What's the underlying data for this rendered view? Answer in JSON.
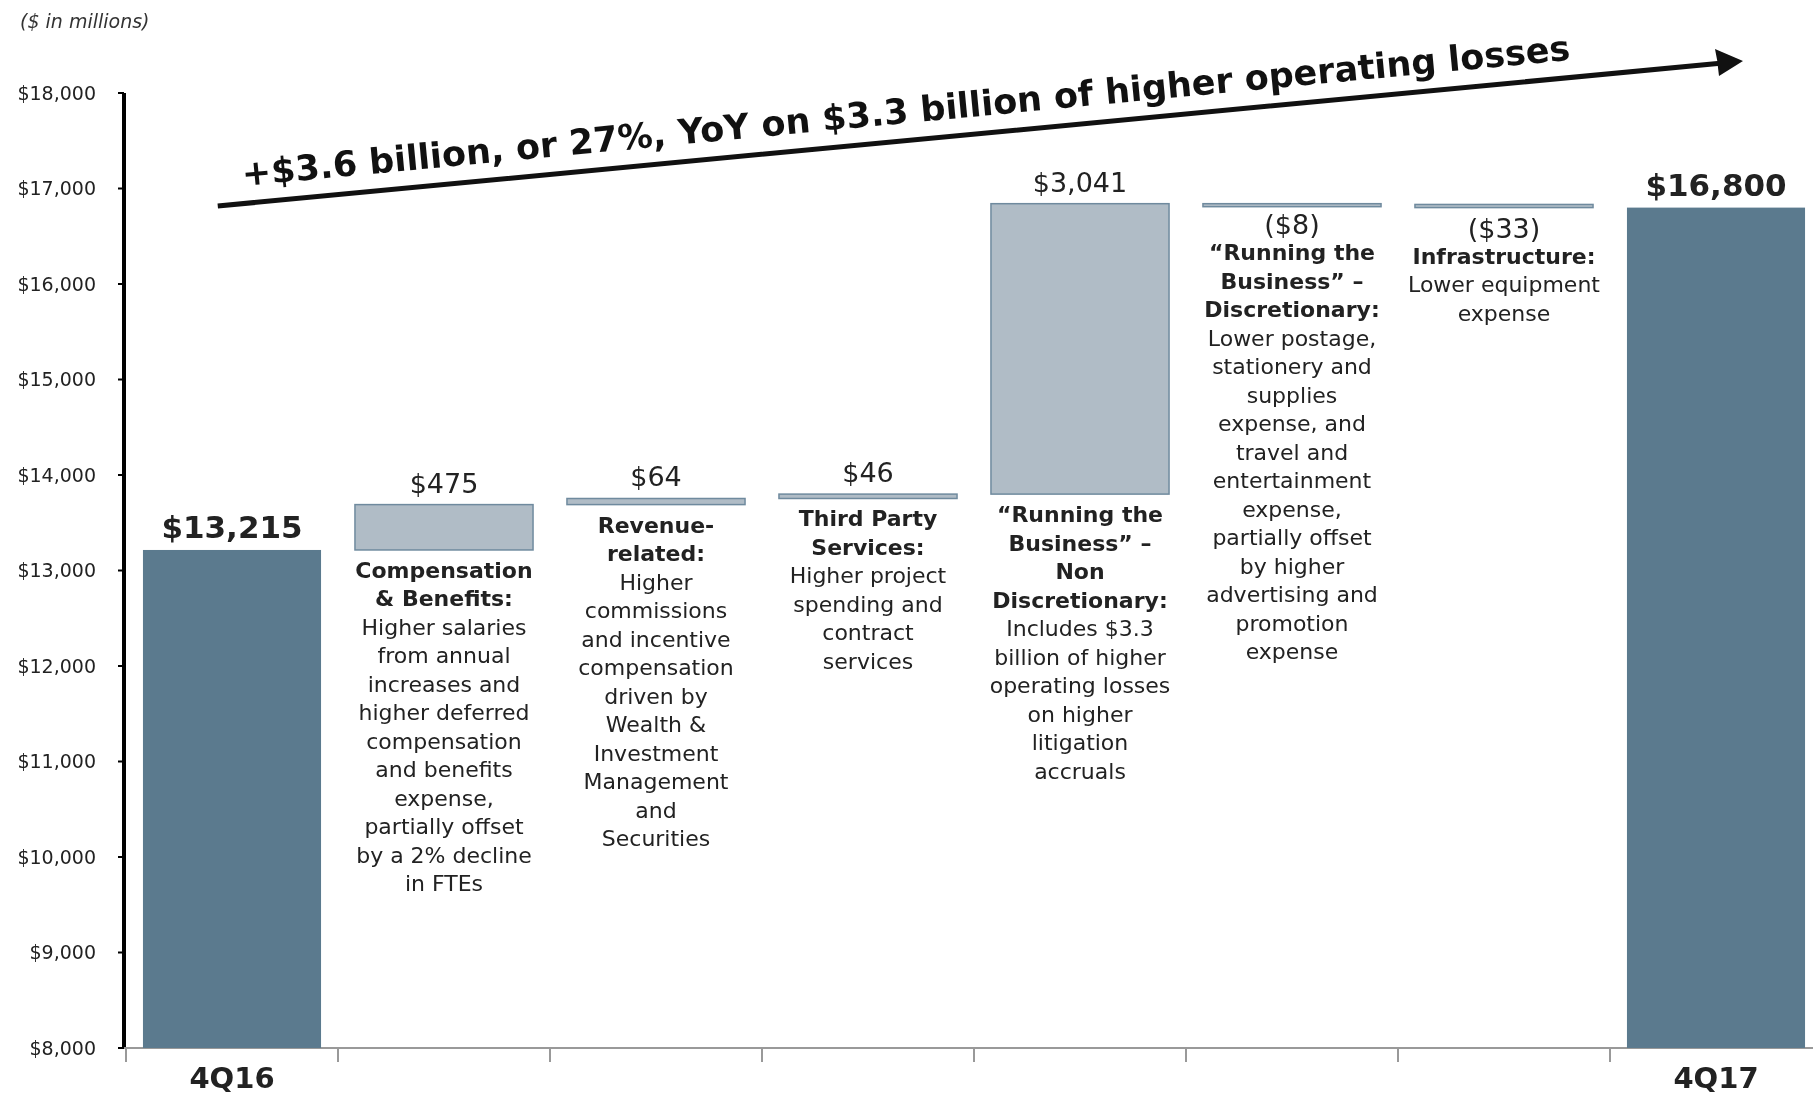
{
  "chart_data": {
    "type": "bar",
    "title": "+$3.6 billion, or 27%, YoY on $3.3 billion of higher operating losses",
    "ylabel": "($ in millions)",
    "categories": [
      "4Q16",
      null,
      null,
      null,
      null,
      null,
      null,
      "4Q17"
    ],
    "values": [
      13215,
      475,
      64,
      46,
      3041,
      -8,
      -33,
      16800
    ],
    "base": [
      null,
      13215,
      13690,
      13754,
      13800,
      16841,
      16833,
      null
    ],
    "colors": [
      "#5b7a8e",
      "#b0bcc6",
      "#b0bcc6",
      "#b0bcc6",
      "#b0bcc6",
      "#b0bcc6",
      "#b0bcc6",
      "#5b7a8e"
    ],
    "value_labels": [
      "$13,215",
      "$475",
      "$64",
      "$46",
      "$3,041",
      "($8)",
      "($33)",
      "$16,800"
    ],
    "ylim": [
      8000,
      18000
    ],
    "yticks": [
      {
        "value": 8000,
        "label": "$8,000"
      },
      {
        "value": 9000,
        "label": "$9,000"
      },
      {
        "value": 10000,
        "label": "$10,000"
      },
      {
        "value": 11000,
        "label": "$11,000"
      },
      {
        "value": 12000,
        "label": "$12,000"
      },
      {
        "value": 13000,
        "label": "$13,000"
      },
      {
        "value": 14000,
        "label": "$14,000"
      },
      {
        "value": 15000,
        "label": "$15,000"
      },
      {
        "value": 16000,
        "label": "$16,000"
      },
      {
        "value": 17000,
        "label": "$17,000"
      },
      {
        "value": 18000,
        "label": "$18,000"
      }
    ],
    "annotations": [
      "Compensation\n& Benefits:\nHigher salaries\nfrom annual\nincreases and\nhigher deferred\ncompensation\nand benefits\nexpense,\npartially offset\nby a 2% decline\nin FTEs",
      "Revenue-\nrelated:\nHigher\ncommissions\nand incentive\ncompensation\ndriven by\nWealth &\nInvestment\nManagement\nand\nSecurities",
      "Third Party\nServices:\nHigher project\nspending and\ncontract\nservices",
      "“Running the\nBusiness” –\nNon\nDiscretionary:\nIncludes $3.3\nbillion of higher\noperating losses\non higher\nlitigation\naccruals",
      "“Running the\nBusiness” –\nDiscretionary:\nLower postage,\nstationery and\nsupplies\nexpense, and\ntravel and\nentertainment\nexpense,\npartially offset\nby higher\nadvertising and\npromotion\nexpense",
      "Infrastructure:\nLower equipment\nexpense"
    ],
    "grid": false
  }
}
